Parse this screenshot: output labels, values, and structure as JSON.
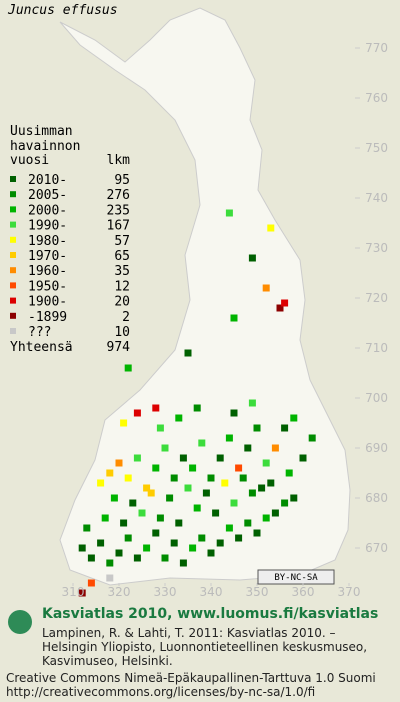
{
  "title": "Juncus effusus",
  "legend": {
    "heading": [
      "Uusimman",
      "havainnon",
      "vuosi"
    ],
    "count_heading": "lkm",
    "entries": [
      {
        "label": "2010-",
        "count": 95,
        "color": "#006000"
      },
      {
        "label": "2005-",
        "count": 276,
        "color": "#008c00"
      },
      {
        "label": "2000-",
        "count": 235,
        "color": "#00b400"
      },
      {
        "label": "1990-",
        "count": 167,
        "color": "#3cdc3c"
      },
      {
        "label": "1980-",
        "count": 57,
        "color": "#ffff00"
      },
      {
        "label": "1970-",
        "count": 65,
        "color": "#ffcc00"
      },
      {
        "label": "1960-",
        "count": 35,
        "color": "#ff8c00"
      },
      {
        "label": "1950-",
        "count": 12,
        "color": "#ff4a00"
      },
      {
        "label": "1900-",
        "count": 20,
        "color": "#dc0000"
      },
      {
        "label": "-1899",
        "count": 2,
        "color": "#8c0000"
      },
      {
        "label": "???",
        "count": 10,
        "color": "#c8c8c8"
      }
    ],
    "total_label": "Yhteensä",
    "total": 974
  },
  "yticks": [
    670,
    680,
    690,
    700,
    710,
    720,
    730,
    740,
    750,
    760,
    770
  ],
  "xticks": [
    310,
    320,
    330,
    340,
    350,
    360,
    370
  ],
  "license_badge": "BY-NC-SA",
  "footer": {
    "heading": "Kasviatlas 2010, www.luomus.fi/kasviatlas",
    "citation": [
      "Lampinen, R. & Lahti, T. 2011: Kasviatlas 2010. –",
      "Helsingin Yliopisto, Luonnontieteellinen keskusmuseo,",
      "Kasvimuseo, Helsinki."
    ],
    "license": [
      "Creative Commons Nimeä-Epäkaupallinen-Tarttuva 1.0 Suomi",
      "http://creativecommons.org/licenses/by-nc-sa/1.0/fi"
    ]
  },
  "observations": [
    [
      312,
      670,
      0
    ],
    [
      314,
      668,
      0
    ],
    [
      316,
      671,
      0
    ],
    [
      318,
      667,
      1
    ],
    [
      320,
      669,
      0
    ],
    [
      322,
      672,
      1
    ],
    [
      324,
      668,
      0
    ],
    [
      326,
      670,
      2
    ],
    [
      328,
      673,
      0
    ],
    [
      330,
      668,
      1
    ],
    [
      332,
      671,
      0
    ],
    [
      334,
      667,
      0
    ],
    [
      336,
      670,
      2
    ],
    [
      338,
      672,
      1
    ],
    [
      340,
      669,
      0
    ],
    [
      342,
      671,
      0
    ],
    [
      344,
      674,
      2
    ],
    [
      346,
      672,
      0
    ],
    [
      348,
      675,
      1
    ],
    [
      350,
      673,
      0
    ],
    [
      352,
      676,
      2
    ],
    [
      354,
      677,
      0
    ],
    [
      356,
      679,
      1
    ],
    [
      358,
      680,
      0
    ],
    [
      313,
      674,
      1
    ],
    [
      317,
      676,
      2
    ],
    [
      321,
      675,
      0
    ],
    [
      325,
      677,
      3
    ],
    [
      329,
      676,
      1
    ],
    [
      333,
      675,
      0
    ],
    [
      337,
      678,
      2
    ],
    [
      341,
      677,
      0
    ],
    [
      345,
      679,
      3
    ],
    [
      349,
      681,
      1
    ],
    [
      353,
      683,
      0
    ],
    [
      357,
      685,
      2
    ],
    [
      360,
      688,
      0
    ],
    [
      362,
      692,
      1
    ],
    [
      316,
      683,
      4
    ],
    [
      318,
      685,
      5
    ],
    [
      320,
      687,
      6
    ],
    [
      322,
      684,
      4
    ],
    [
      324,
      688,
      3
    ],
    [
      326,
      682,
      5
    ],
    [
      328,
      686,
      2
    ],
    [
      330,
      690,
      3
    ],
    [
      332,
      684,
      1
    ],
    [
      334,
      688,
      0
    ],
    [
      336,
      686,
      2
    ],
    [
      338,
      691,
      3
    ],
    [
      340,
      684,
      1
    ],
    [
      342,
      688,
      0
    ],
    [
      344,
      692,
      2
    ],
    [
      346,
      686,
      7
    ],
    [
      348,
      690,
      0
    ],
    [
      350,
      694,
      1
    ],
    [
      352,
      687,
      3
    ],
    [
      354,
      690,
      6
    ],
    [
      356,
      694,
      0
    ],
    [
      358,
      696,
      2
    ],
    [
      319,
      680,
      2
    ],
    [
      323,
      679,
      0
    ],
    [
      327,
      681,
      5
    ],
    [
      331,
      680,
      1
    ],
    [
      335,
      682,
      3
    ],
    [
      339,
      681,
      0
    ],
    [
      343,
      683,
      4
    ],
    [
      347,
      684,
      1
    ],
    [
      351,
      682,
      0
    ],
    [
      321,
      695,
      4
    ],
    [
      324,
      697,
      8
    ],
    [
      329,
      694,
      3
    ],
    [
      333,
      696,
      2
    ],
    [
      337,
      698,
      1
    ],
    [
      345,
      697,
      0
    ],
    [
      349,
      699,
      3
    ],
    [
      328,
      698,
      8
    ],
    [
      322,
      706,
      2
    ],
    [
      335,
      709,
      0
    ],
    [
      345,
      716,
      2
    ],
    [
      352,
      722,
      6
    ],
    [
      355,
      718,
      9
    ],
    [
      356,
      719,
      8
    ],
    [
      353,
      734,
      4
    ],
    [
      344,
      737,
      3
    ],
    [
      312,
      661,
      9
    ],
    [
      314,
      663,
      7
    ],
    [
      318,
      664,
      10
    ],
    [
      349,
      728,
      0
    ]
  ]
}
